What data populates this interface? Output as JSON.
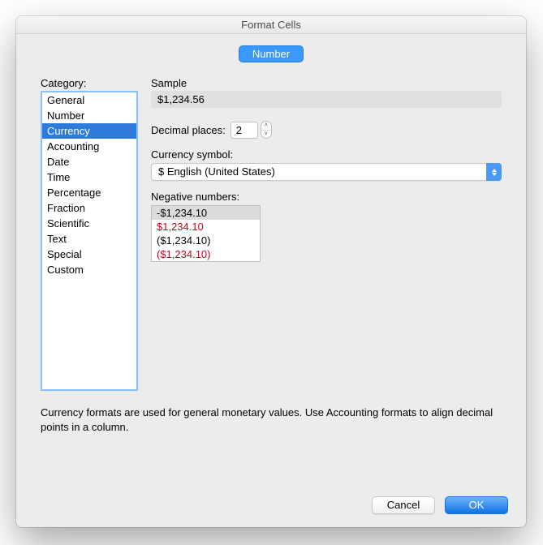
{
  "window": {
    "title": "Format Cells"
  },
  "tabs": {
    "active": "Number"
  },
  "category": {
    "label": "Category:",
    "items": [
      "General",
      "Number",
      "Currency",
      "Accounting",
      "Date",
      "Time",
      "Percentage",
      "Fraction",
      "Scientific",
      "Text",
      "Special",
      "Custom"
    ],
    "selected_index": 2
  },
  "sample": {
    "label": "Sample",
    "value": "$1,234.56"
  },
  "decimal": {
    "label": "Decimal places:",
    "value": "2"
  },
  "currency_symbol": {
    "label": "Currency symbol:",
    "value": "$ English (United States)"
  },
  "negative": {
    "label": "Negative numbers:",
    "items": [
      {
        "text": "-$1,234.10",
        "red": false
      },
      {
        "text": "$1,234.10",
        "red": true
      },
      {
        "text": "($1,234.10)",
        "red": false
      },
      {
        "text": "($1,234.10)",
        "red": true
      }
    ],
    "selected_index": 0
  },
  "description": "Currency formats are used for general monetary values.  Use Accounting formats to align decimal points in a column.",
  "buttons": {
    "cancel": "Cancel",
    "ok": "OK"
  },
  "colors": {
    "accent": "#3b99fc",
    "selection": "#2f7bda",
    "focus_ring": "#89c0f6",
    "red": "#d0021b",
    "bg": "#ececec"
  }
}
